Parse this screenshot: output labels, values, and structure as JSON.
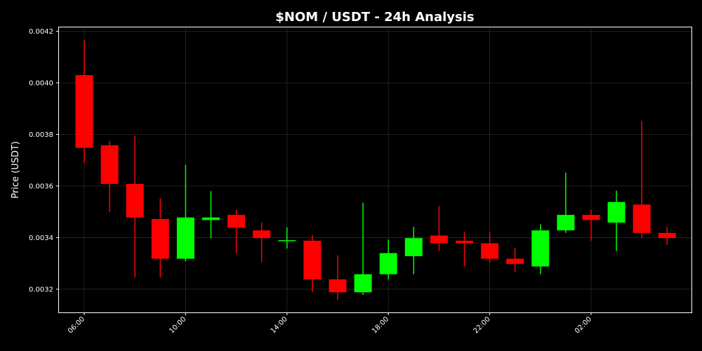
{
  "chart_data": {
    "type": "candlestick",
    "title": "$NOM / USDT - 24h Analysis",
    "xlabel": "",
    "ylabel": "Price (USDT)",
    "ylim": [
      0.00311,
      0.004215
    ],
    "y_ticks": [
      "0.0032",
      "0.0034",
      "0.0036",
      "0.0038",
      "0.0040",
      "0.0042"
    ],
    "x_ticks": [
      {
        "label": "06:00",
        "index": 0
      },
      {
        "label": "10:00",
        "index": 4
      },
      {
        "label": "14:00",
        "index": 8
      },
      {
        "label": "18:00",
        "index": 12
      },
      {
        "label": "22:00",
        "index": 16
      },
      {
        "label": "02:00",
        "index": 20
      }
    ],
    "grid": true,
    "colors": {
      "up": "#00ff00",
      "down": "#ff0000",
      "background": "#000000",
      "grid": "#2a2a2a",
      "text": "#ffffff"
    },
    "candles": [
      {
        "time": "06:00",
        "open": 0.00403,
        "high": 0.004165,
        "low": 0.003688,
        "close": 0.003748
      },
      {
        "time": "07:00",
        "open": 0.003758,
        "high": 0.003775,
        "low": 0.0035,
        "close": 0.003608
      },
      {
        "time": "08:00",
        "open": 0.003608,
        "high": 0.003795,
        "low": 0.003245,
        "close": 0.003478
      },
      {
        "time": "09:00",
        "open": 0.003472,
        "high": 0.003552,
        "low": 0.003245,
        "close": 0.003318
      },
      {
        "time": "10:00",
        "open": 0.003318,
        "high": 0.003682,
        "low": 0.003308,
        "close": 0.003478
      },
      {
        "time": "11:00",
        "open": 0.003468,
        "high": 0.00358,
        "low": 0.003398,
        "close": 0.003478
      },
      {
        "time": "12:00",
        "open": 0.003488,
        "high": 0.003508,
        "low": 0.003338,
        "close": 0.003438
      },
      {
        "time": "13:00",
        "open": 0.003428,
        "high": 0.003458,
        "low": 0.003305,
        "close": 0.003398
      },
      {
        "time": "14:00",
        "open": 0.003388,
        "high": 0.00344,
        "low": 0.003358,
        "close": 0.00339
      },
      {
        "time": "15:00",
        "open": 0.003388,
        "high": 0.00341,
        "low": 0.003188,
        "close": 0.003238
      },
      {
        "time": "16:00",
        "open": 0.003238,
        "high": 0.003332,
        "low": 0.003158,
        "close": 0.003188
      },
      {
        "time": "17:00",
        "open": 0.003188,
        "high": 0.003535,
        "low": 0.003178,
        "close": 0.003258
      },
      {
        "time": "18:00",
        "open": 0.003258,
        "high": 0.003392,
        "low": 0.003238,
        "close": 0.00334
      },
      {
        "time": "19:00",
        "open": 0.003328,
        "high": 0.003442,
        "low": 0.003258,
        "close": 0.003398
      },
      {
        "time": "20:00",
        "open": 0.003408,
        "high": 0.003522,
        "low": 0.003348,
        "close": 0.003378
      },
      {
        "time": "21:00",
        "open": 0.003388,
        "high": 0.003422,
        "low": 0.003288,
        "close": 0.003378
      },
      {
        "time": "22:00",
        "open": 0.003378,
        "high": 0.003422,
        "low": 0.003302,
        "close": 0.003318
      },
      {
        "time": "23:00",
        "open": 0.003318,
        "high": 0.00336,
        "low": 0.003268,
        "close": 0.003298
      },
      {
        "time": "00:00",
        "open": 0.003288,
        "high": 0.003452,
        "low": 0.003258,
        "close": 0.003428
      },
      {
        "time": "01:00",
        "open": 0.003428,
        "high": 0.003652,
        "low": 0.003418,
        "close": 0.003488
      },
      {
        "time": "02:00",
        "open": 0.003488,
        "high": 0.003508,
        "low": 0.003388,
        "close": 0.003468
      },
      {
        "time": "03:00",
        "open": 0.003458,
        "high": 0.003582,
        "low": 0.003348,
        "close": 0.003538
      },
      {
        "time": "04:00",
        "open": 0.003528,
        "high": 0.003852,
        "low": 0.003398,
        "close": 0.003418
      },
      {
        "time": "05:00",
        "open": 0.003418,
        "high": 0.003442,
        "low": 0.003372,
        "close": 0.003398
      }
    ]
  }
}
